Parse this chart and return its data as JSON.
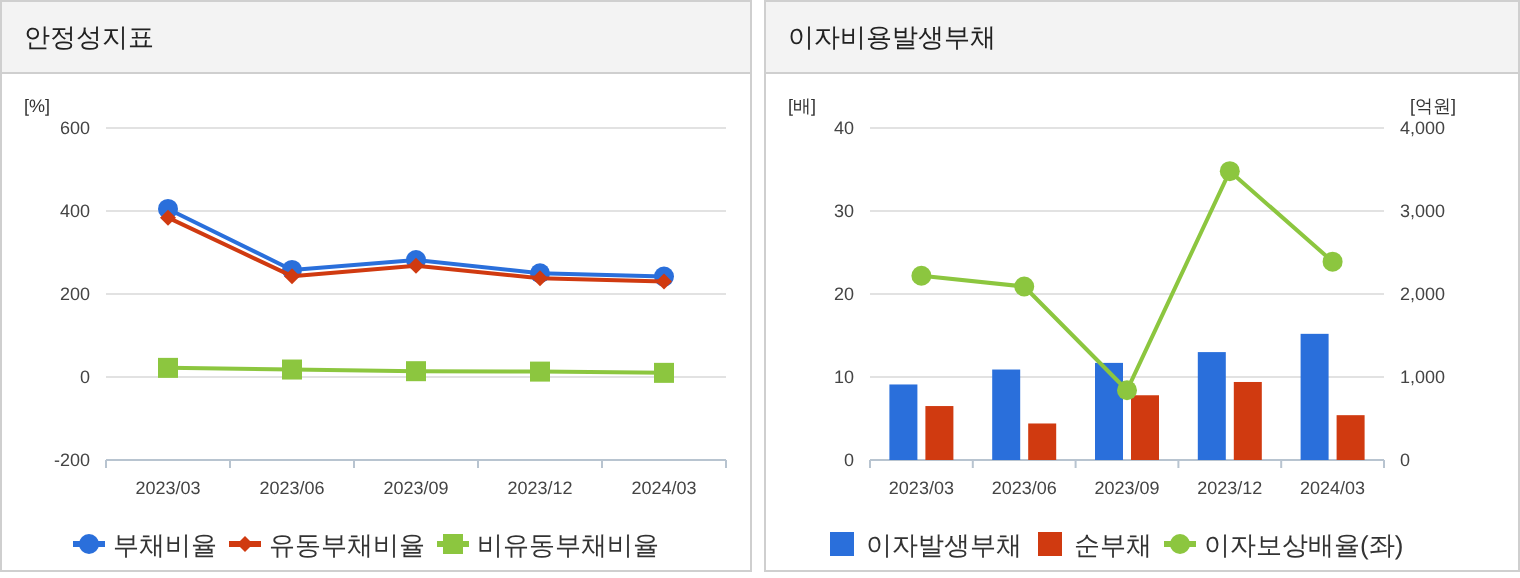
{
  "chart_data": [
    {
      "type": "line",
      "title": "안정성지표",
      "ylabel": "[%]",
      "categories": [
        "2023/03",
        "2023/06",
        "2023/09",
        "2023/12",
        "2024/03"
      ],
      "ylim": [
        -200,
        600
      ],
      "yticks": [
        -200,
        0,
        200,
        400,
        600
      ],
      "grid": "y",
      "legend": "bottom",
      "series": [
        {
          "name": "부채비율",
          "color": "#2a6fdb",
          "marker": "circle",
          "values": [
            405,
            258,
            282,
            250,
            242
          ]
        },
        {
          "name": "유동부채비율",
          "color": "#d03a10",
          "marker": "diamond",
          "values": [
            384,
            243,
            268,
            238,
            230
          ]
        },
        {
          "name": "비유동부채비율",
          "color": "#8cc63f",
          "marker": "square",
          "values": [
            22,
            18,
            14,
            13,
            10
          ]
        }
      ]
    },
    {
      "type": "bar",
      "title": "이자비용발생부채",
      "ylabel": "[배]",
      "y2label": "[억원]",
      "categories": [
        "2023/03",
        "2023/06",
        "2023/09",
        "2023/12",
        "2024/03"
      ],
      "ylim": [
        0,
        40
      ],
      "yticks": [
        0,
        10,
        20,
        30,
        40
      ],
      "y2lim": [
        0,
        4000
      ],
      "y2ticks": [
        0,
        {
          "value": 1000,
          "label": "1,000"
        },
        {
          "value": 2000,
          "label": "2,000"
        },
        {
          "value": 3000,
          "label": "3,000"
        },
        {
          "value": 4000,
          "label": "4,000"
        }
      ],
      "grid": "y",
      "legend": "bottom",
      "series": [
        {
          "name": "이자발생부채",
          "color": "#2a6fdb",
          "axis": "y2",
          "values": [
            910,
            1090,
            1170,
            1300,
            1520
          ]
        },
        {
          "name": "순부채",
          "color": "#d03a10",
          "axis": "y2",
          "values": [
            650,
            440,
            780,
            940,
            540
          ]
        },
        {
          "name": "이자보상배율(좌)",
          "type": "line",
          "color": "#8cc63f",
          "marker": "circle",
          "values": [
            22.2,
            20.9,
            8.4,
            34.8,
            23.9
          ]
        }
      ]
    }
  ]
}
